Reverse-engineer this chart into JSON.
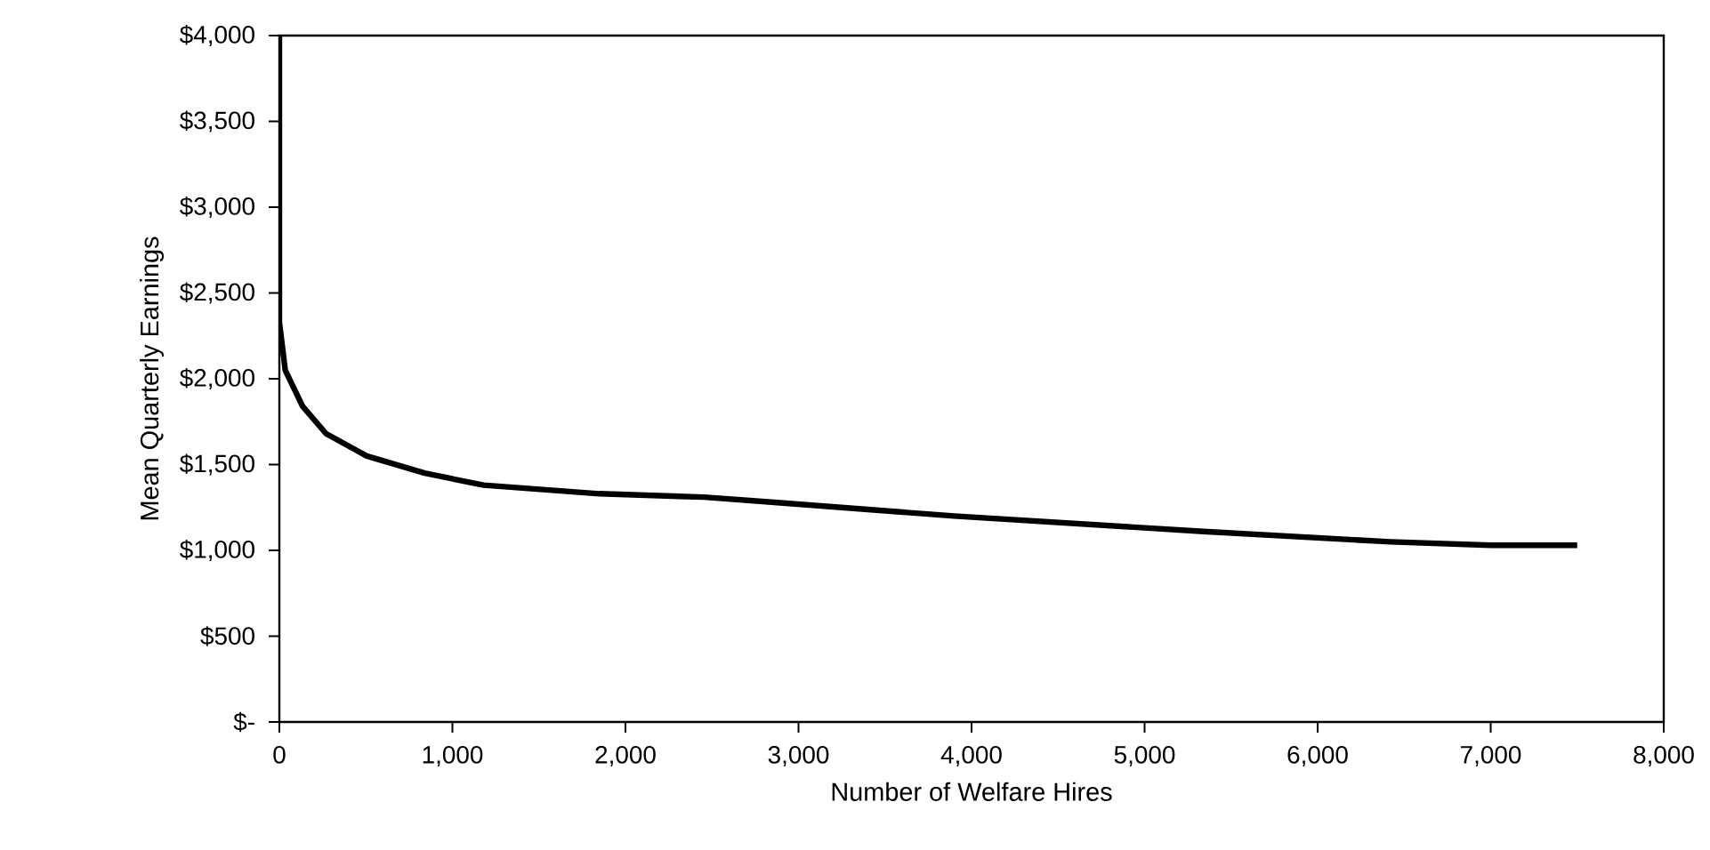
{
  "chart_data": {
    "type": "line",
    "xlabel": "Number of Welfare Hires",
    "ylabel": "Mean Quarterly Earnings",
    "x": [
      0,
      0,
      34,
      134,
      270,
      505,
      840,
      1180,
      1850,
      2455,
      2860,
      3900,
      5340,
      6420,
      7000,
      7500
    ],
    "series": [
      {
        "color": "#000000",
        "values": [
          4000,
          2330,
          2050,
          1840,
          1680,
          1550,
          1450,
          1380,
          1330,
          1310,
          1280,
          1200,
          1110,
          1050,
          1030,
          1030
        ]
      }
    ],
    "xlim": [
      0,
      8000
    ],
    "ylim": [
      0,
      4000
    ],
    "xticks": [
      {
        "value": 0,
        "label": "0"
      },
      {
        "value": 1000,
        "label": "1,000"
      },
      {
        "value": 2000,
        "label": "2,000"
      },
      {
        "value": 3000,
        "label": "3,000"
      },
      {
        "value": 4000,
        "label": "4,000"
      },
      {
        "value": 5000,
        "label": "5,000"
      },
      {
        "value": 6000,
        "label": "6,000"
      },
      {
        "value": 7000,
        "label": "7,000"
      },
      {
        "value": 8000,
        "label": "8,000"
      }
    ],
    "yticks": [
      {
        "value": 0,
        "label": "$-"
      },
      {
        "value": 500,
        "label": "$500"
      },
      {
        "value": 1000,
        "label": "$1,000"
      },
      {
        "value": 1500,
        "label": "$1,500"
      },
      {
        "value": 2000,
        "label": "$2,000"
      },
      {
        "value": 2500,
        "label": "$2,500"
      },
      {
        "value": 3000,
        "label": "$3,000"
      },
      {
        "value": 3500,
        "label": "$3,500"
      },
      {
        "value": 4000,
        "label": "$4,000"
      }
    ],
    "grid": false,
    "legend": false,
    "marker": "none",
    "line_style": "solid"
  }
}
